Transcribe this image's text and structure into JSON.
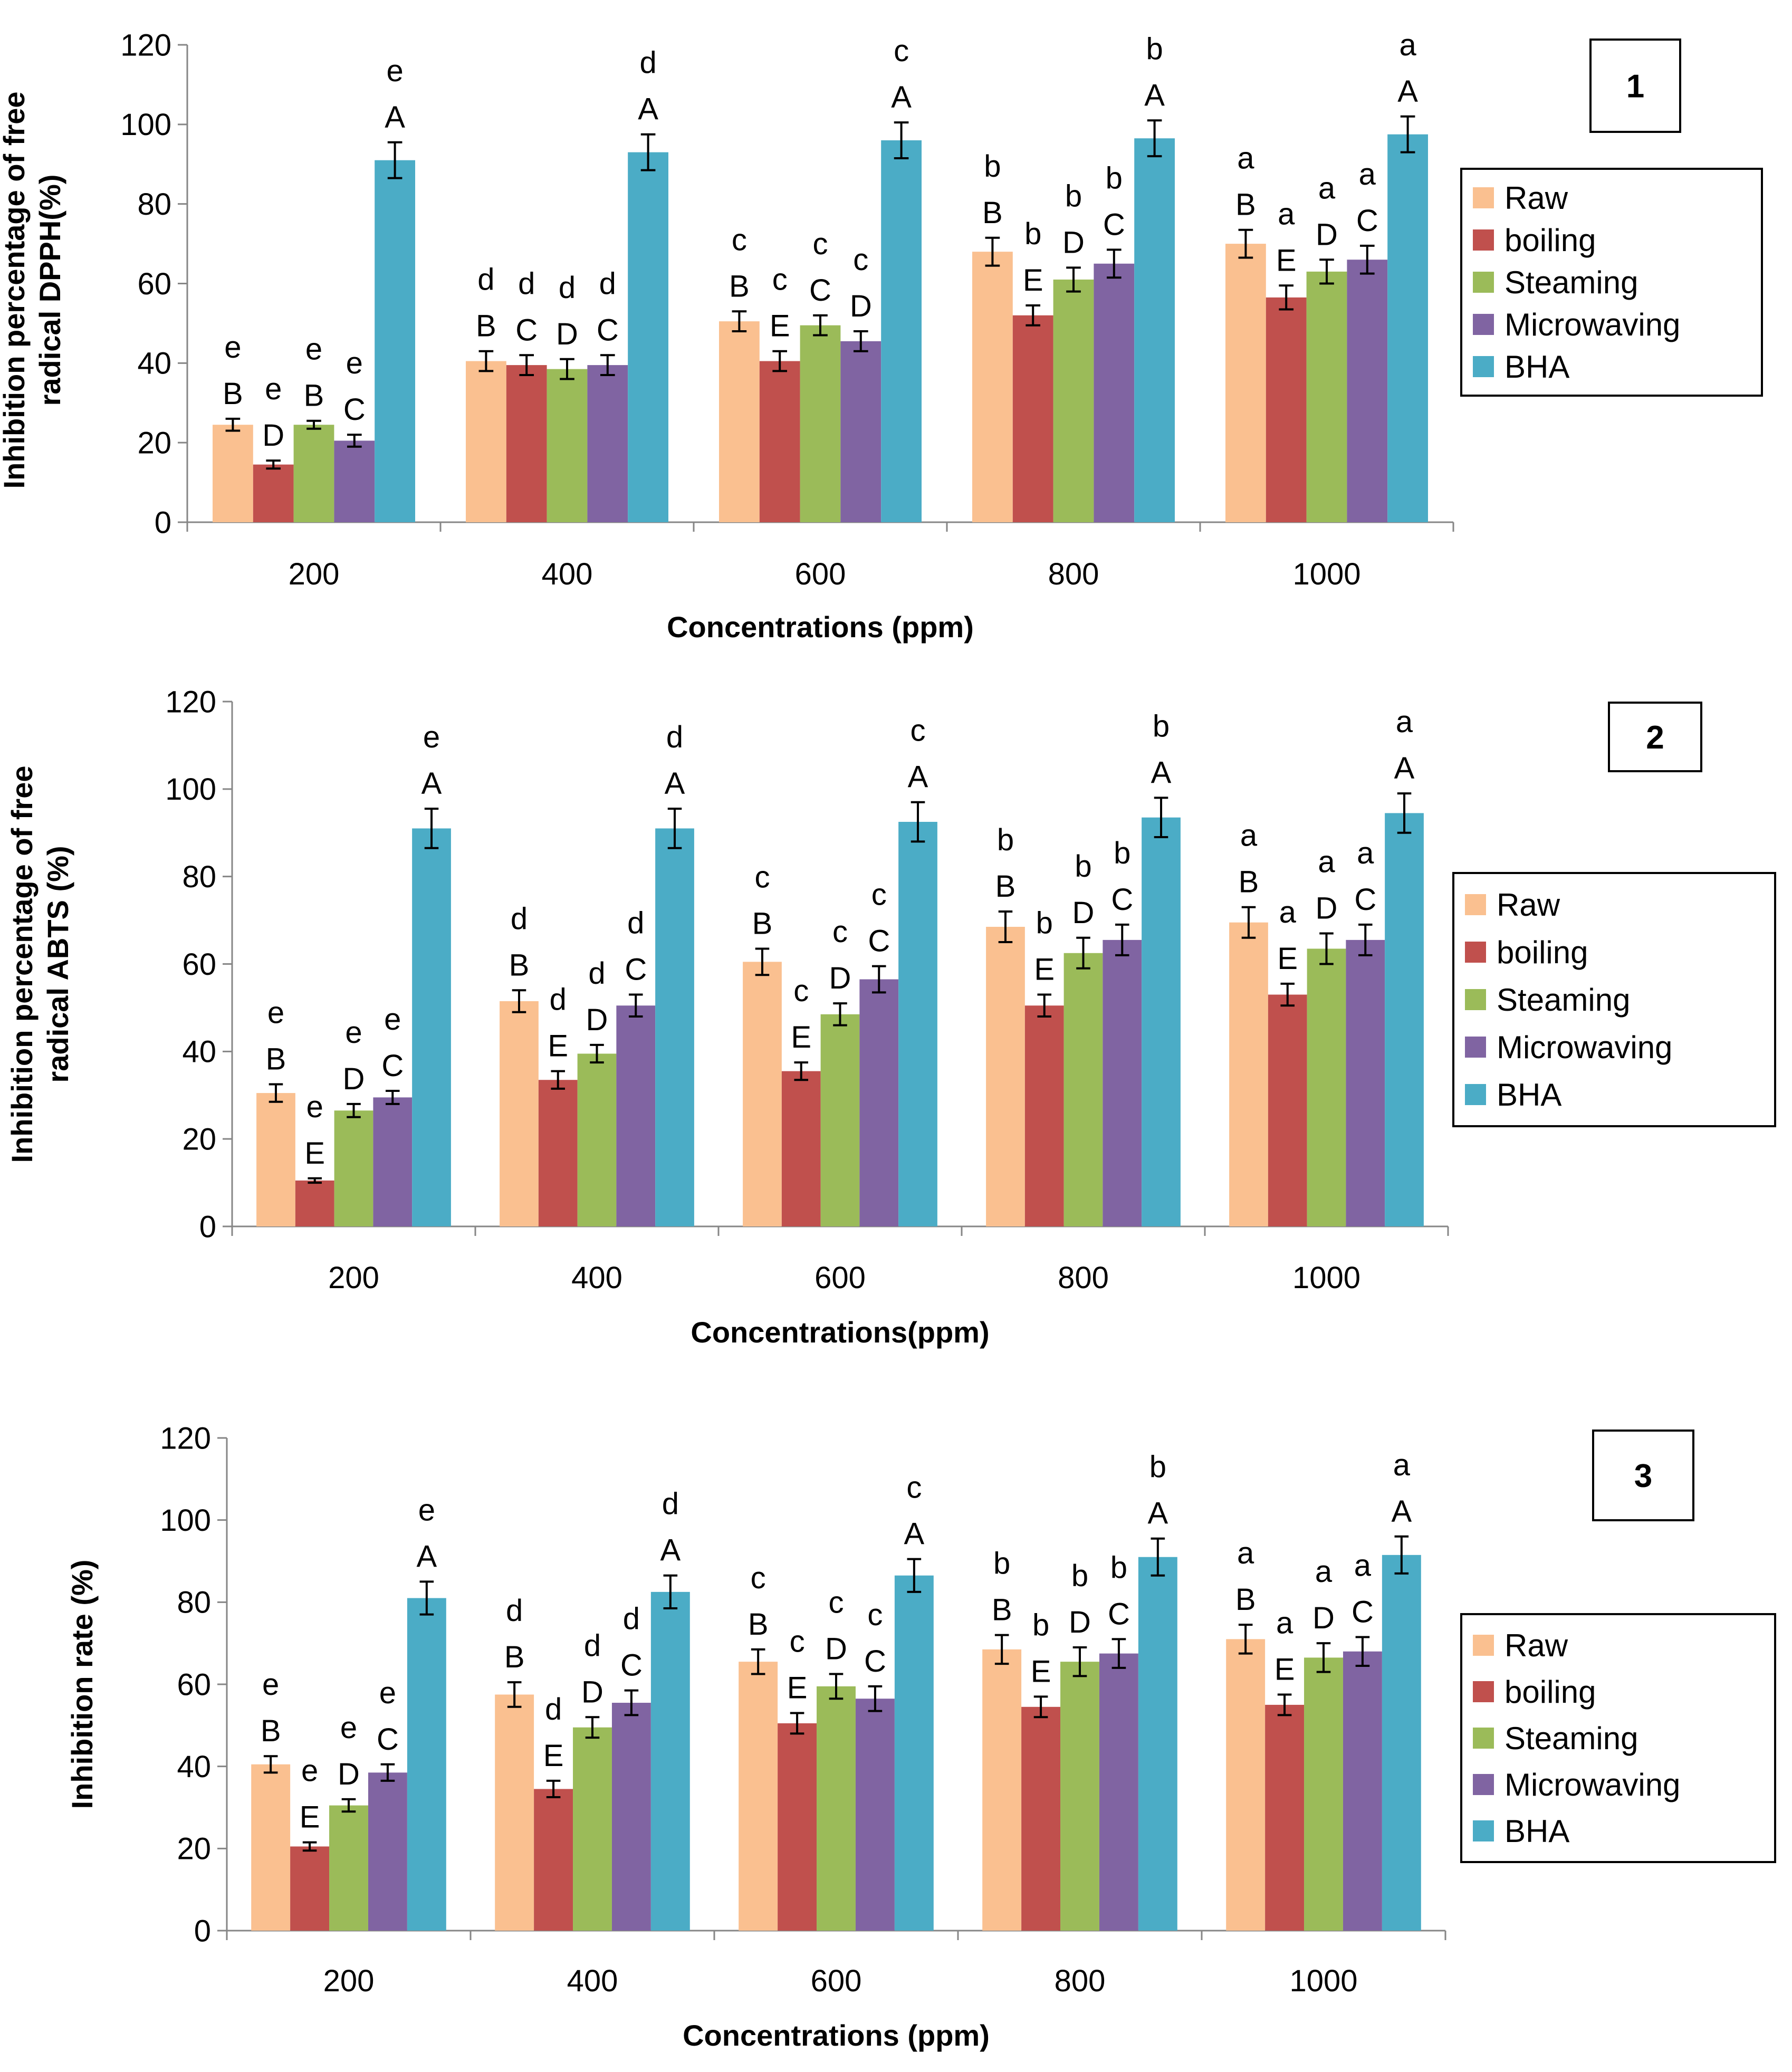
{
  "series_colors": {
    "Raw": "#fac090",
    "boiling": "#c0504d",
    "Steaming": "#9bbb59",
    "Microwaving": "#8064a2",
    "BHA": "#4bacc6"
  },
  "chart_data": [
    {
      "type": "bar",
      "panel_label": "1",
      "title": "",
      "xlabel": "Concentrations (ppm)",
      "ylabel": "Inhibition percentage of free radical DPPH(%)",
      "ylabel_lines": [
        "Inhibition percentage of free",
        "radical DPPH(%)"
      ],
      "ylim": [
        0,
        120
      ],
      "yticks": [
        "0",
        "20",
        "40",
        "60",
        "80",
        "100",
        "120"
      ],
      "categories": [
        "200",
        "400",
        "600",
        "800",
        "1000"
      ],
      "legend": [
        "Raw",
        "boiling",
        "Steaming",
        "Microwaving",
        "BHA"
      ],
      "series": [
        {
          "name": "Raw",
          "values": [
            24.5,
            40.5,
            50.5,
            68,
            70
          ],
          "errors": [
            1.5,
            2.5,
            2.5,
            3.5,
            3.5
          ],
          "upper_letters": [
            "B",
            "B",
            "B",
            "B",
            "B"
          ],
          "lower_letters": [
            "e",
            "d",
            "c",
            "b",
            "a"
          ]
        },
        {
          "name": "boiling",
          "values": [
            14.5,
            39.5,
            40.5,
            52,
            56.5
          ],
          "errors": [
            1,
            2.5,
            2.5,
            2.5,
            3
          ],
          "upper_letters": [
            "D",
            "C",
            "E",
            "E",
            "E"
          ],
          "lower_letters": [
            "e",
            "d",
            "c",
            "b",
            "a"
          ]
        },
        {
          "name": "Steaming",
          "values": [
            24.5,
            38.5,
            49.5,
            61,
            63
          ],
          "errors": [
            1,
            2.5,
            2.5,
            3,
            3
          ],
          "upper_letters": [
            "B",
            "D",
            "C",
            "D",
            "D"
          ],
          "lower_letters": [
            "e",
            "d",
            "c",
            "b",
            "a"
          ]
        },
        {
          "name": "Microwaving",
          "values": [
            20.5,
            39.5,
            45.5,
            65,
            66
          ],
          "errors": [
            1.5,
            2.5,
            2.5,
            3.5,
            3.5
          ],
          "upper_letters": [
            "C",
            "C",
            "D",
            "C",
            "C"
          ],
          "lower_letters": [
            "e",
            "d",
            "c",
            "b",
            "a"
          ]
        },
        {
          "name": "BHA",
          "values": [
            91,
            93,
            96,
            96.5,
            97.5
          ],
          "errors": [
            4.5,
            4.5,
            4.5,
            4.5,
            4.5
          ],
          "upper_letters": [
            "A",
            "A",
            "A",
            "A",
            "A"
          ],
          "lower_letters": [
            "e",
            "d",
            "c",
            "b",
            "a"
          ]
        }
      ]
    },
    {
      "type": "bar",
      "panel_label": "2",
      "title": "",
      "xlabel": "Concentrations(ppm)",
      "ylabel": "Inhibition percentage of free radical ABTS (%)",
      "ylabel_lines": [
        "Inhibition percentage of free",
        "radical ABTS (%)"
      ],
      "ylim": [
        0,
        120
      ],
      "yticks": [
        "0",
        "20",
        "40",
        "60",
        "80",
        "100",
        "120"
      ],
      "categories": [
        "200",
        "400",
        "600",
        "800",
        "1000"
      ],
      "legend": [
        "Raw",
        "boiling",
        "Steaming",
        "Microwaving",
        "BHA"
      ],
      "series": [
        {
          "name": "Raw",
          "values": [
            30.5,
            51.5,
            60.5,
            68.5,
            69.5
          ],
          "errors": [
            2,
            2.5,
            3,
            3.5,
            3.5
          ],
          "upper_letters": [
            "B",
            "B",
            "B",
            "B",
            "B"
          ],
          "lower_letters": [
            "e",
            "d",
            "c",
            "b",
            "a"
          ]
        },
        {
          "name": "boiling",
          "values": [
            10.5,
            33.5,
            35.5,
            50.5,
            53
          ],
          "errors": [
            0.5,
            2,
            2,
            2.5,
            2.5
          ],
          "upper_letters": [
            "E",
            "E",
            "E",
            "E",
            "E"
          ],
          "lower_letters": [
            "e",
            "d",
            "c",
            "b",
            "a"
          ]
        },
        {
          "name": "Steaming",
          "values": [
            26.5,
            39.5,
            48.5,
            62.5,
            63.5
          ],
          "errors": [
            1.5,
            2,
            2.5,
            3.5,
            3.5
          ],
          "upper_letters": [
            "D",
            "D",
            "D",
            "D",
            "D"
          ],
          "lower_letters": [
            "e",
            "d",
            "c",
            "b",
            "a"
          ]
        },
        {
          "name": "Microwaving",
          "values": [
            29.5,
            50.5,
            56.5,
            65.5,
            65.5
          ],
          "errors": [
            1.5,
            2.5,
            3,
            3.5,
            3.5
          ],
          "upper_letters": [
            "C",
            "C",
            "C",
            "C",
            "C"
          ],
          "lower_letters": [
            "e",
            "d",
            "c",
            "b",
            "a"
          ]
        },
        {
          "name": "BHA",
          "values": [
            91,
            91,
            92.5,
            93.5,
            94.5
          ],
          "errors": [
            4.5,
            4.5,
            4.5,
            4.5,
            4.5
          ],
          "upper_letters": [
            "A",
            "A",
            "A",
            "A",
            "A"
          ],
          "lower_letters": [
            "e",
            "d",
            "c",
            "b",
            "a"
          ]
        }
      ]
    },
    {
      "type": "bar",
      "panel_label": "3",
      "title": "",
      "xlabel": "Concentrations (ppm)",
      "ylabel": "Inhibition rate (%)",
      "ylabel_lines": [
        "Inhibition rate (%)"
      ],
      "ylim": [
        0,
        120
      ],
      "yticks": [
        "0",
        "20",
        "40",
        "60",
        "80",
        "100",
        "120"
      ],
      "categories": [
        "200",
        "400",
        "600",
        "800",
        "1000"
      ],
      "legend": [
        "Raw",
        "boiling",
        "Steaming",
        "Microwaving",
        "BHA"
      ],
      "series": [
        {
          "name": "Raw",
          "values": [
            40.5,
            57.5,
            65.5,
            68.5,
            71
          ],
          "errors": [
            2,
            3,
            3,
            3.5,
            3.5
          ],
          "upper_letters": [
            "B",
            "B",
            "B",
            "B",
            "B"
          ],
          "lower_letters": [
            "e",
            "d",
            "c",
            "b",
            "a"
          ]
        },
        {
          "name": "boiling",
          "values": [
            20.5,
            34.5,
            50.5,
            54.5,
            55
          ],
          "errors": [
            1,
            2,
            2.5,
            2.5,
            2.5
          ],
          "upper_letters": [
            "E",
            "E",
            "E",
            "E",
            "E"
          ],
          "lower_letters": [
            "e",
            "d",
            "c",
            "b",
            "a"
          ]
        },
        {
          "name": "Steaming",
          "values": [
            30.5,
            49.5,
            59.5,
            65.5,
            66.5
          ],
          "errors": [
            1.5,
            2.5,
            3,
            3.5,
            3.5
          ],
          "upper_letters": [
            "D",
            "D",
            "D",
            "D",
            "D"
          ],
          "lower_letters": [
            "e",
            "d",
            "c",
            "b",
            "a"
          ]
        },
        {
          "name": "Microwaving",
          "values": [
            38.5,
            55.5,
            56.5,
            67.5,
            68
          ],
          "errors": [
            2,
            3,
            3,
            3.5,
            3.5
          ],
          "upper_letters": [
            "C",
            "C",
            "C",
            "C",
            "C"
          ],
          "lower_letters": [
            "e",
            "d",
            "c",
            "b",
            "a"
          ]
        },
        {
          "name": "BHA",
          "values": [
            81,
            82.5,
            86.5,
            91,
            91.5
          ],
          "errors": [
            4,
            4,
            4,
            4.5,
            4.5
          ],
          "upper_letters": [
            "A",
            "A",
            "A",
            "A",
            "A"
          ],
          "lower_letters": [
            "e",
            "d",
            "c",
            "b",
            "a"
          ]
        }
      ]
    }
  ]
}
